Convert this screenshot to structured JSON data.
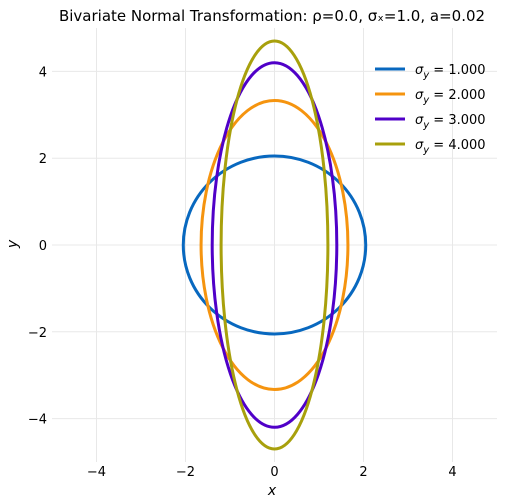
{
  "chart_data": {
    "type": "line",
    "title": "Bivariate Normal Transformation: ρ=0.0, σₓ=1.0, a=0.02",
    "xlabel": "x",
    "ylabel": "y",
    "xlim": [
      -5,
      5
    ],
    "ylim": [
      -5,
      5
    ],
    "xticks": [
      -4,
      -2,
      0,
      2,
      4
    ],
    "yticks": [
      -4,
      -2,
      0,
      2,
      4
    ],
    "grid": true,
    "legend_position": "top-right",
    "series": [
      {
        "name": "σy = 1.000",
        "legend_text": "= 1.000",
        "color": "#0868bf",
        "shape": "ellipse",
        "center": [
          0,
          0
        ],
        "semi_axis_x": 2.05,
        "semi_axis_y": 2.05
      },
      {
        "name": "σy = 2.000",
        "legend_text": "= 2.000",
        "color": "#f5940f",
        "shape": "ellipse",
        "center": [
          0,
          0
        ],
        "semi_axis_x": 1.65,
        "semi_axis_y": 3.33
      },
      {
        "name": "σy = 3.000",
        "legend_text": "= 3.000",
        "color": "#5000c8",
        "shape": "ellipse",
        "center": [
          0,
          0
        ],
        "semi_axis_x": 1.4,
        "semi_axis_y": 4.2
      },
      {
        "name": "σy = 4.000",
        "legend_text": "= 4.000",
        "color": "#a8a00c",
        "shape": "ellipse",
        "center": [
          0,
          0
        ],
        "semi_axis_x": 1.2,
        "semi_axis_y": 4.7
      }
    ]
  }
}
